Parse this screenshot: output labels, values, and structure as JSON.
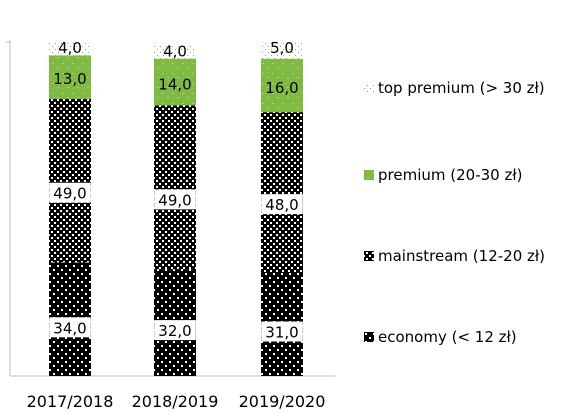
{
  "chart_data": {
    "type": "bar",
    "stacked": true,
    "categories": [
      "2017/2018",
      "2018/2019",
      "2019/2020"
    ],
    "series": [
      {
        "name": "economy (< 12 zł)",
        "values": [
          34,
          32,
          31
        ],
        "labels": [
          "34,0",
          "32,0",
          "31,0"
        ],
        "pattern": "dots-on-black",
        "color": "#000000"
      },
      {
        "name": "mainstream (12-20 zł)",
        "values": [
          49,
          49,
          48
        ],
        "labels": [
          "49,0",
          "49,0",
          "48,0"
        ],
        "pattern": "checker",
        "color": "#000000"
      },
      {
        "name": "premium (20-30 zł)",
        "values": [
          13,
          14,
          16
        ],
        "labels": [
          "13,0",
          "14,0",
          "16,0"
        ],
        "pattern": "solid-green",
        "color": "#7fba42"
      },
      {
        "name": "top premium (> 30 zł)",
        "values": [
          4,
          4,
          5
        ],
        "labels": [
          "4,0",
          "4,0",
          "5,0"
        ],
        "pattern": "sparse-dots",
        "color": "#7fba42"
      }
    ],
    "ylim": [
      0,
      100
    ],
    "grid": false,
    "legend_position": "right",
    "title": "",
    "xlabel": "",
    "ylabel": ""
  }
}
